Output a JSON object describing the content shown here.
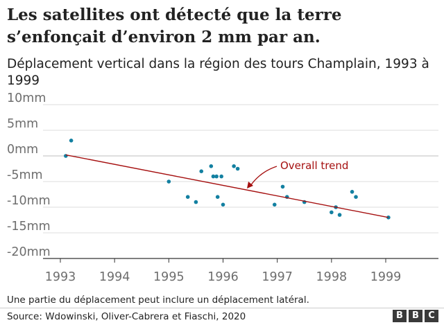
{
  "header": {
    "title": "Les satellites ont détecté que la terre s’enfonçait d’environ 2 mm par an.",
    "subtitle": "Déplacement vertical dans la région des tours Champlain, 1993 à 1999"
  },
  "chart_data": {
    "type": "scatter",
    "title": "Les satellites ont détecté que la terre s’enfonçait d’environ 2 mm par an.",
    "subtitle": "Déplacement vertical dans la région des tours Champlain, 1993 à 1999",
    "xlabel": "",
    "ylabel": "",
    "xlim": [
      1993,
      1999.9
    ],
    "ylim": [
      -20,
      10
    ],
    "xticks": [
      1993,
      1994,
      1995,
      1996,
      1997,
      1998,
      1999
    ],
    "xtick_labels": [
      "1993",
      "1994",
      "1995",
      "1996",
      "1997",
      "1998",
      "1999"
    ],
    "yticks": [
      10,
      5,
      0,
      -5,
      -10,
      -15,
      -20
    ],
    "ytick_labels": [
      "10mm",
      "5mm",
      "0mm",
      "-5mm",
      "-10mm",
      "-15mm",
      "-20mm"
    ],
    "grid": "horizontal",
    "series": [
      {
        "color": "#1380a1",
        "points": [
          {
            "x": 1993.1,
            "y": 0
          },
          {
            "x": 1993.2,
            "y": 3
          },
          {
            "x": 1995.0,
            "y": -5
          },
          {
            "x": 1995.35,
            "y": -8
          },
          {
            "x": 1995.5,
            "y": -9
          },
          {
            "x": 1995.6,
            "y": -3
          },
          {
            "x": 1995.78,
            "y": -2
          },
          {
            "x": 1995.82,
            "y": -4
          },
          {
            "x": 1995.88,
            "y": -4
          },
          {
            "x": 1995.9,
            "y": -8
          },
          {
            "x": 1995.97,
            "y": -4
          },
          {
            "x": 1996.0,
            "y": -9.5
          },
          {
            "x": 1996.2,
            "y": -2
          },
          {
            "x": 1996.27,
            "y": -2.5
          },
          {
            "x": 1996.95,
            "y": -9.5
          },
          {
            "x": 1997.1,
            "y": -6
          },
          {
            "x": 1997.18,
            "y": -8
          },
          {
            "x": 1997.5,
            "y": -9
          },
          {
            "x": 1998.0,
            "y": -11
          },
          {
            "x": 1998.08,
            "y": -10
          },
          {
            "x": 1998.15,
            "y": -11.5
          },
          {
            "x": 1998.38,
            "y": -7
          },
          {
            "x": 1998.45,
            "y": -8
          },
          {
            "x": 1999.05,
            "y": -12
          }
        ]
      }
    ],
    "trend_line": {
      "label": "Overall trend",
      "color": "#a50f0f",
      "start": {
        "x": 1993.1,
        "y": 0.2
      },
      "end": {
        "x": 1999.05,
        "y": -12
      }
    }
  },
  "footer": {
    "note": "Une partie du déplacement peut inclure un déplacement latéral.",
    "source": "Source: Wdowinski, Oliver-Cabrera et Fiaschi, 2020",
    "logo_letters": [
      "B",
      "B",
      "C"
    ]
  }
}
